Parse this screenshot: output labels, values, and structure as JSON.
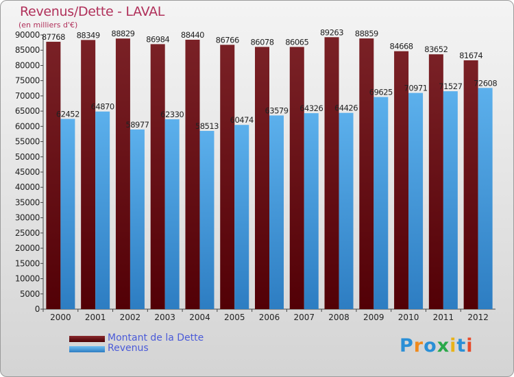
{
  "header": {
    "title": "Revenus/Dette - LAVAL",
    "subtitle": "(en milliers d'€)"
  },
  "legend": {
    "items": [
      {
        "label": "Montant de la Dette",
        "color": "#6a0f10"
      },
      {
        "label": "Revenus",
        "color": "#3c96d6"
      }
    ]
  },
  "logo": {
    "text": "Proxiti",
    "letters": [
      "P",
      "r",
      "o",
      "x",
      "i",
      "t",
      "i"
    ]
  },
  "chart_data": {
    "type": "bar",
    "categories": [
      "2000",
      "2001",
      "2002",
      "2003",
      "2004",
      "2005",
      "2006",
      "2007",
      "2008",
      "2009",
      "2010",
      "2011",
      "2012"
    ],
    "series": [
      {
        "name": "Montant de la Dette",
        "color": "#6a0f10",
        "values": [
          87768,
          88349,
          88829,
          86984,
          88440,
          86766,
          86078,
          86065,
          89263,
          88859,
          84668,
          83652,
          81674
        ]
      },
      {
        "name": "Revenus",
        "color": "#3c96d6",
        "values": [
          62452,
          64870,
          58977,
          62330,
          58513,
          60474,
          63579,
          64326,
          64426,
          69625,
          70971,
          71527,
          72608
        ]
      }
    ],
    "ylim": [
      0,
      90000
    ],
    "ytick_step": 5000,
    "grid": false,
    "legend_position": "bottom-left"
  }
}
